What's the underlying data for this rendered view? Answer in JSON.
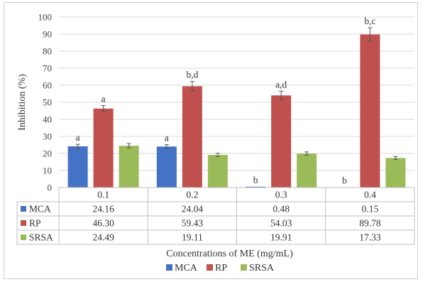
{
  "chart_data": {
    "type": "bar",
    "xlabel": "Concentrations of ME (mg/mL)",
    "ylabel": "Inhibition (%)",
    "ylim": [
      0,
      100
    ],
    "yticks": [
      "0",
      "10",
      "20",
      "30",
      "40",
      "50",
      "60",
      "70",
      "80",
      "90",
      "100"
    ],
    "categories": [
      "0.1",
      "0.2",
      "0.3",
      "0.4"
    ],
    "grid": true,
    "legend_position": "bottom",
    "series": [
      {
        "name": "MCA",
        "color": "#4472c4",
        "values": [
          24.16,
          24.04,
          0.48,
          0.15
        ],
        "display": [
          "24.16",
          "24.04",
          "0.48",
          "0.15"
        ],
        "errors": [
          1.2,
          1.1,
          0.1,
          0.1
        ],
        "labels": [
          "a",
          "a",
          "b",
          "b"
        ]
      },
      {
        "name": "RP",
        "color": "#c0504d",
        "values": [
          46.3,
          59.43,
          54.03,
          89.78
        ],
        "display": [
          "46.30",
          "59.43",
          "54.03",
          "89.78"
        ],
        "errors": [
          1.8,
          2.8,
          2.5,
          4.0
        ],
        "labels": [
          "a",
          "b,d",
          "a,d",
          "b,c"
        ]
      },
      {
        "name": "SRSA",
        "color": "#9bbb59",
        "values": [
          24.49,
          19.11,
          19.91,
          17.33
        ],
        "display": [
          "24.49",
          "19.11",
          "19.91",
          "17.33"
        ],
        "errors": [
          1.3,
          1.0,
          1.0,
          0.9
        ],
        "labels": [
          "",
          "",
          "",
          ""
        ]
      }
    ]
  }
}
